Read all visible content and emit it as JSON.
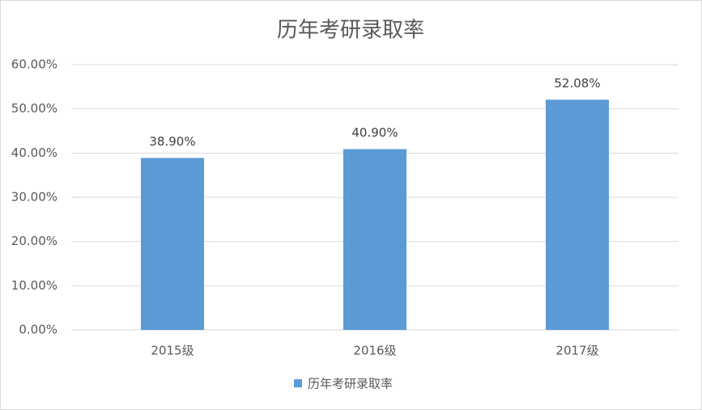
{
  "chart_data": {
    "type": "bar",
    "title": "历年考研录取率",
    "categories": [
      "2015级",
      "2016级",
      "2017级"
    ],
    "series": [
      {
        "name": "历年考研录取率",
        "color": "#5b9bd5",
        "values": [
          38.9,
          40.9,
          52.08
        ],
        "value_labels": [
          "38.90%",
          "40.90%",
          "52.08%"
        ]
      }
    ],
    "ylim": [
      0,
      60
    ],
    "yticks": [
      {
        "value": 0,
        "label": "0.00%"
      },
      {
        "value": 10,
        "label": "10.00%"
      },
      {
        "value": 20,
        "label": "20.00%"
      },
      {
        "value": 30,
        "label": "30.00%"
      },
      {
        "value": 40,
        "label": "40.00%"
      },
      {
        "value": 50,
        "label": "50.00%"
      },
      {
        "value": 60,
        "label": "60.00%"
      }
    ],
    "grid": true,
    "legend": "bottom"
  }
}
